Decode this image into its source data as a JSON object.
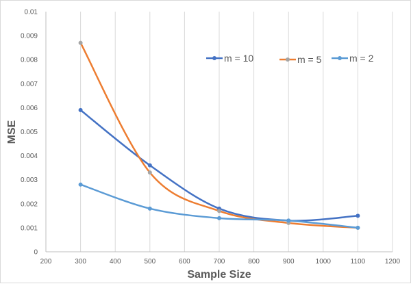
{
  "chart_data": {
    "type": "line",
    "title": "",
    "xlabel": "Sample Size",
    "ylabel": "MSE",
    "xlim": [
      200,
      1200
    ],
    "ylim": [
      0,
      0.01
    ],
    "x_ticks": [
      "200",
      "300",
      "400",
      "500",
      "600",
      "700",
      "800",
      "900",
      "1000",
      "1100",
      "1200"
    ],
    "y_ticks": [
      "0",
      "0.001",
      "0.002",
      "0.003",
      "0.004",
      "0.005",
      "0.006",
      "0.007",
      "0.008",
      "0.009",
      "0.01"
    ],
    "grid": {
      "vertical": true,
      "horizontal": false
    },
    "legend_position": "top-right",
    "x": [
      300,
      500,
      700,
      900,
      1100
    ],
    "series": [
      {
        "name": "m = 10",
        "color": "#4472c4",
        "values": [
          0.0059,
          0.0036,
          0.0018,
          0.0013,
          0.0015
        ]
      },
      {
        "name": "m = 5",
        "color": "#ed7d31",
        "values": [
          0.0087,
          0.0033,
          0.0017,
          0.0012,
          0.001
        ]
      },
      {
        "name": "m = 2",
        "color": "#5b9bd5",
        "values": [
          0.0028,
          0.0018,
          0.0014,
          0.0013,
          0.001
        ]
      }
    ],
    "marker_color": "#a5a5a5"
  }
}
